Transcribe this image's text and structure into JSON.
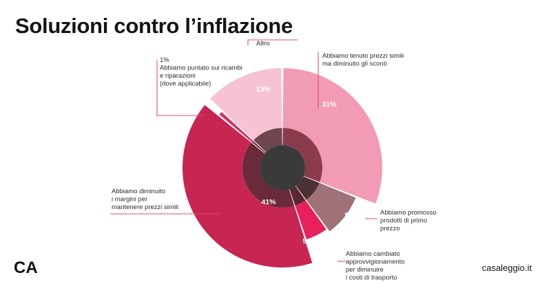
{
  "page": {
    "title": "Soluzioni contro l’inflazione",
    "logo": "CA",
    "website": "casaleggio.it"
  },
  "chart_data": {
    "type": "pie",
    "title": "Soluzioni contro l’inflazione",
    "series": [
      {
        "name": "Abbiamo tenuto prezzi simili ma diminuito gli sconti",
        "label_lines": [
          "Abbiamo tenuto prezzi simili",
          "ma diminuito gli sconti"
        ],
        "value": 31,
        "value_label": "31%",
        "color": "#f29bb4"
      },
      {
        "name": "Abbiamo promosso prodotti di primo prezzo",
        "label_lines": [
          "Abbiamo promosso",
          "prodotti di primo",
          "prezzo"
        ],
        "value": 9,
        "value_label": "9%",
        "color": "#9e7277"
      },
      {
        "name": "Abbiamo cambiato approvvigionamento per diminuire i costi di trasporto",
        "label_lines": [
          "Abbiamo cambiato",
          "approvvigionamento",
          "per diminuire",
          "i costi di trasporto"
        ],
        "value": 5,
        "value_label": "5%",
        "color": "#e8215c"
      },
      {
        "name": "Abbiamo diminuito i margini per mantenere prezzi simili",
        "label_lines": [
          "Abbiamo diminuito",
          "i margini per",
          "mantenere prezzi simili"
        ],
        "value": 41,
        "value_label": "41%",
        "color": "#c72552"
      },
      {
        "name": "1% Abbiamo puntato sui ricambi e riparazioni (dove applicabile)",
        "label_lines": [
          "1%",
          "Abbiamo puntato sui ricambi",
          "e riparazioni",
          "(dove applicabile)"
        ],
        "value": 1,
        "value_label": "",
        "color": "#d8325f"
      },
      {
        "name": "Altro",
        "label_lines": [
          "Altro"
        ],
        "value": 13,
        "value_label": "13%",
        "color": "#f6c3d2"
      }
    ],
    "inner_colors": [
      "#8a3c4b",
      "#4b3035",
      "#5a2633",
      "#6b2a3a",
      "#6b2a3a",
      "#6e4650"
    ],
    "center_color": "#3a3a3a",
    "legend": "none"
  }
}
